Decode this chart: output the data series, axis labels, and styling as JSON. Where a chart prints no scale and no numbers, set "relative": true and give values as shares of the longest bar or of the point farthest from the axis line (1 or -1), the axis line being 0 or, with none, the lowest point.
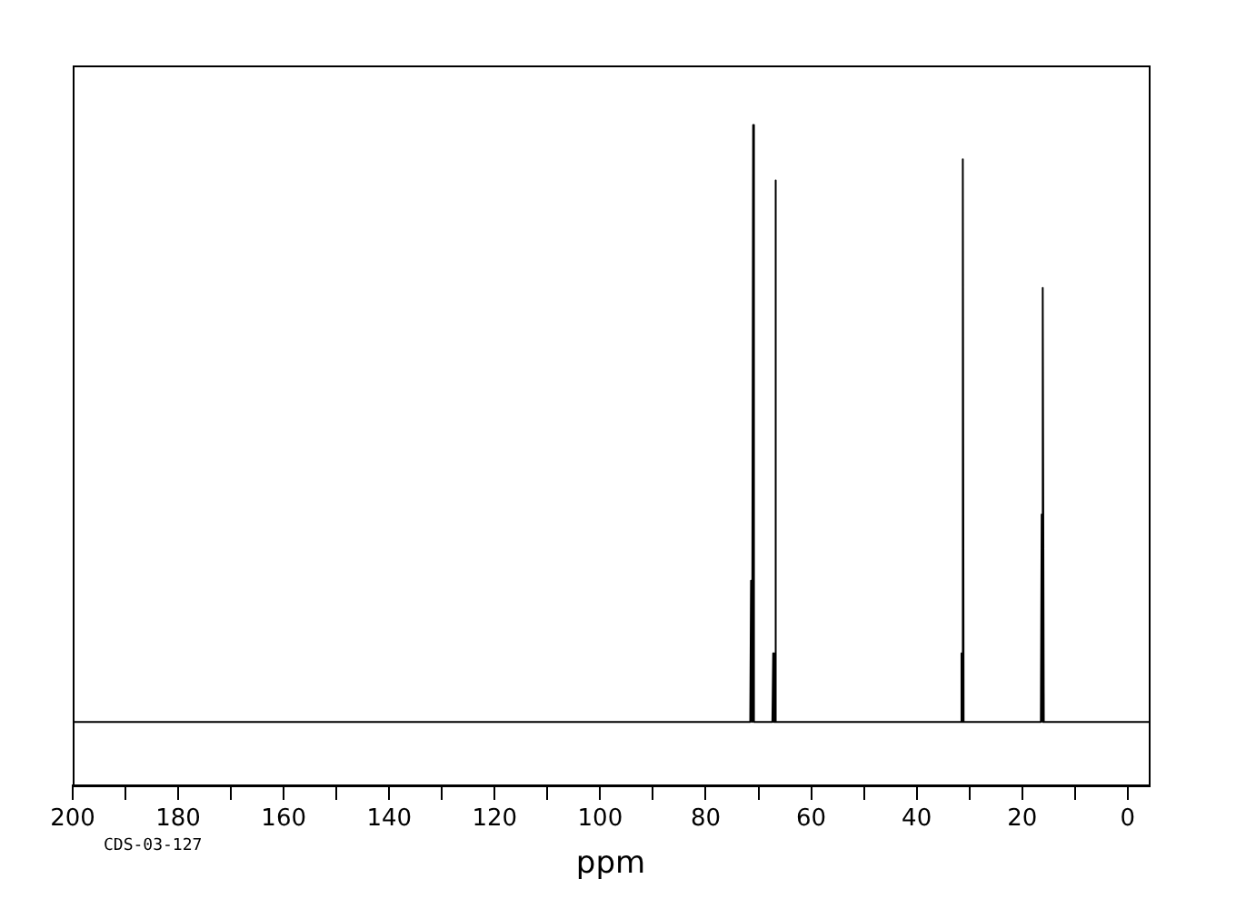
{
  "chart_data": {
    "type": "line",
    "relative": true,
    "xlabel": "ppm",
    "annotations": [
      "CDS-03-127"
    ],
    "xlim": [
      200,
      -4
    ],
    "xticks": [
      200,
      {
        "value": 190,
        "label": null
      },
      180,
      {
        "value": 170,
        "label": null
      },
      160,
      {
        "value": 150,
        "label": null
      },
      140,
      {
        "value": 130,
        "label": null
      },
      120,
      {
        "value": 110,
        "label": null
      },
      100,
      {
        "value": 90,
        "label": null
      },
      80,
      {
        "value": 70,
        "label": null
      },
      60,
      {
        "value": 50,
        "label": null
      },
      40,
      {
        "value": 30,
        "label": null
      },
      20,
      {
        "value": 10,
        "label": null
      },
      0
    ],
    "x": [
      200,
      71.55,
      71.4,
      71.25,
      71.15,
      71.0,
      70.85,
      67.35,
      67.2,
      67.05,
      66.95,
      66.8,
      66.65,
      31.65,
      31.5,
      31.4,
      31.3,
      31.2,
      31.1,
      16.45,
      16.3,
      16.2,
      16.1,
      16.0,
      15.9,
      -4
    ],
    "values": [
      0.096,
      0.096,
      0.31,
      0.096,
      0.096,
      1,
      0.096,
      0.096,
      0.2,
      0.096,
      0.096,
      0.916,
      0.096,
      0.096,
      0.2,
      0.096,
      0.096,
      0.948,
      0.096,
      0.096,
      0.41,
      0.096,
      0.096,
      0.753,
      0.096,
      0.096
    ],
    "color": "#000000",
    "marker": "none",
    "line_style": "solid",
    "grid": false,
    "legend": false
  }
}
